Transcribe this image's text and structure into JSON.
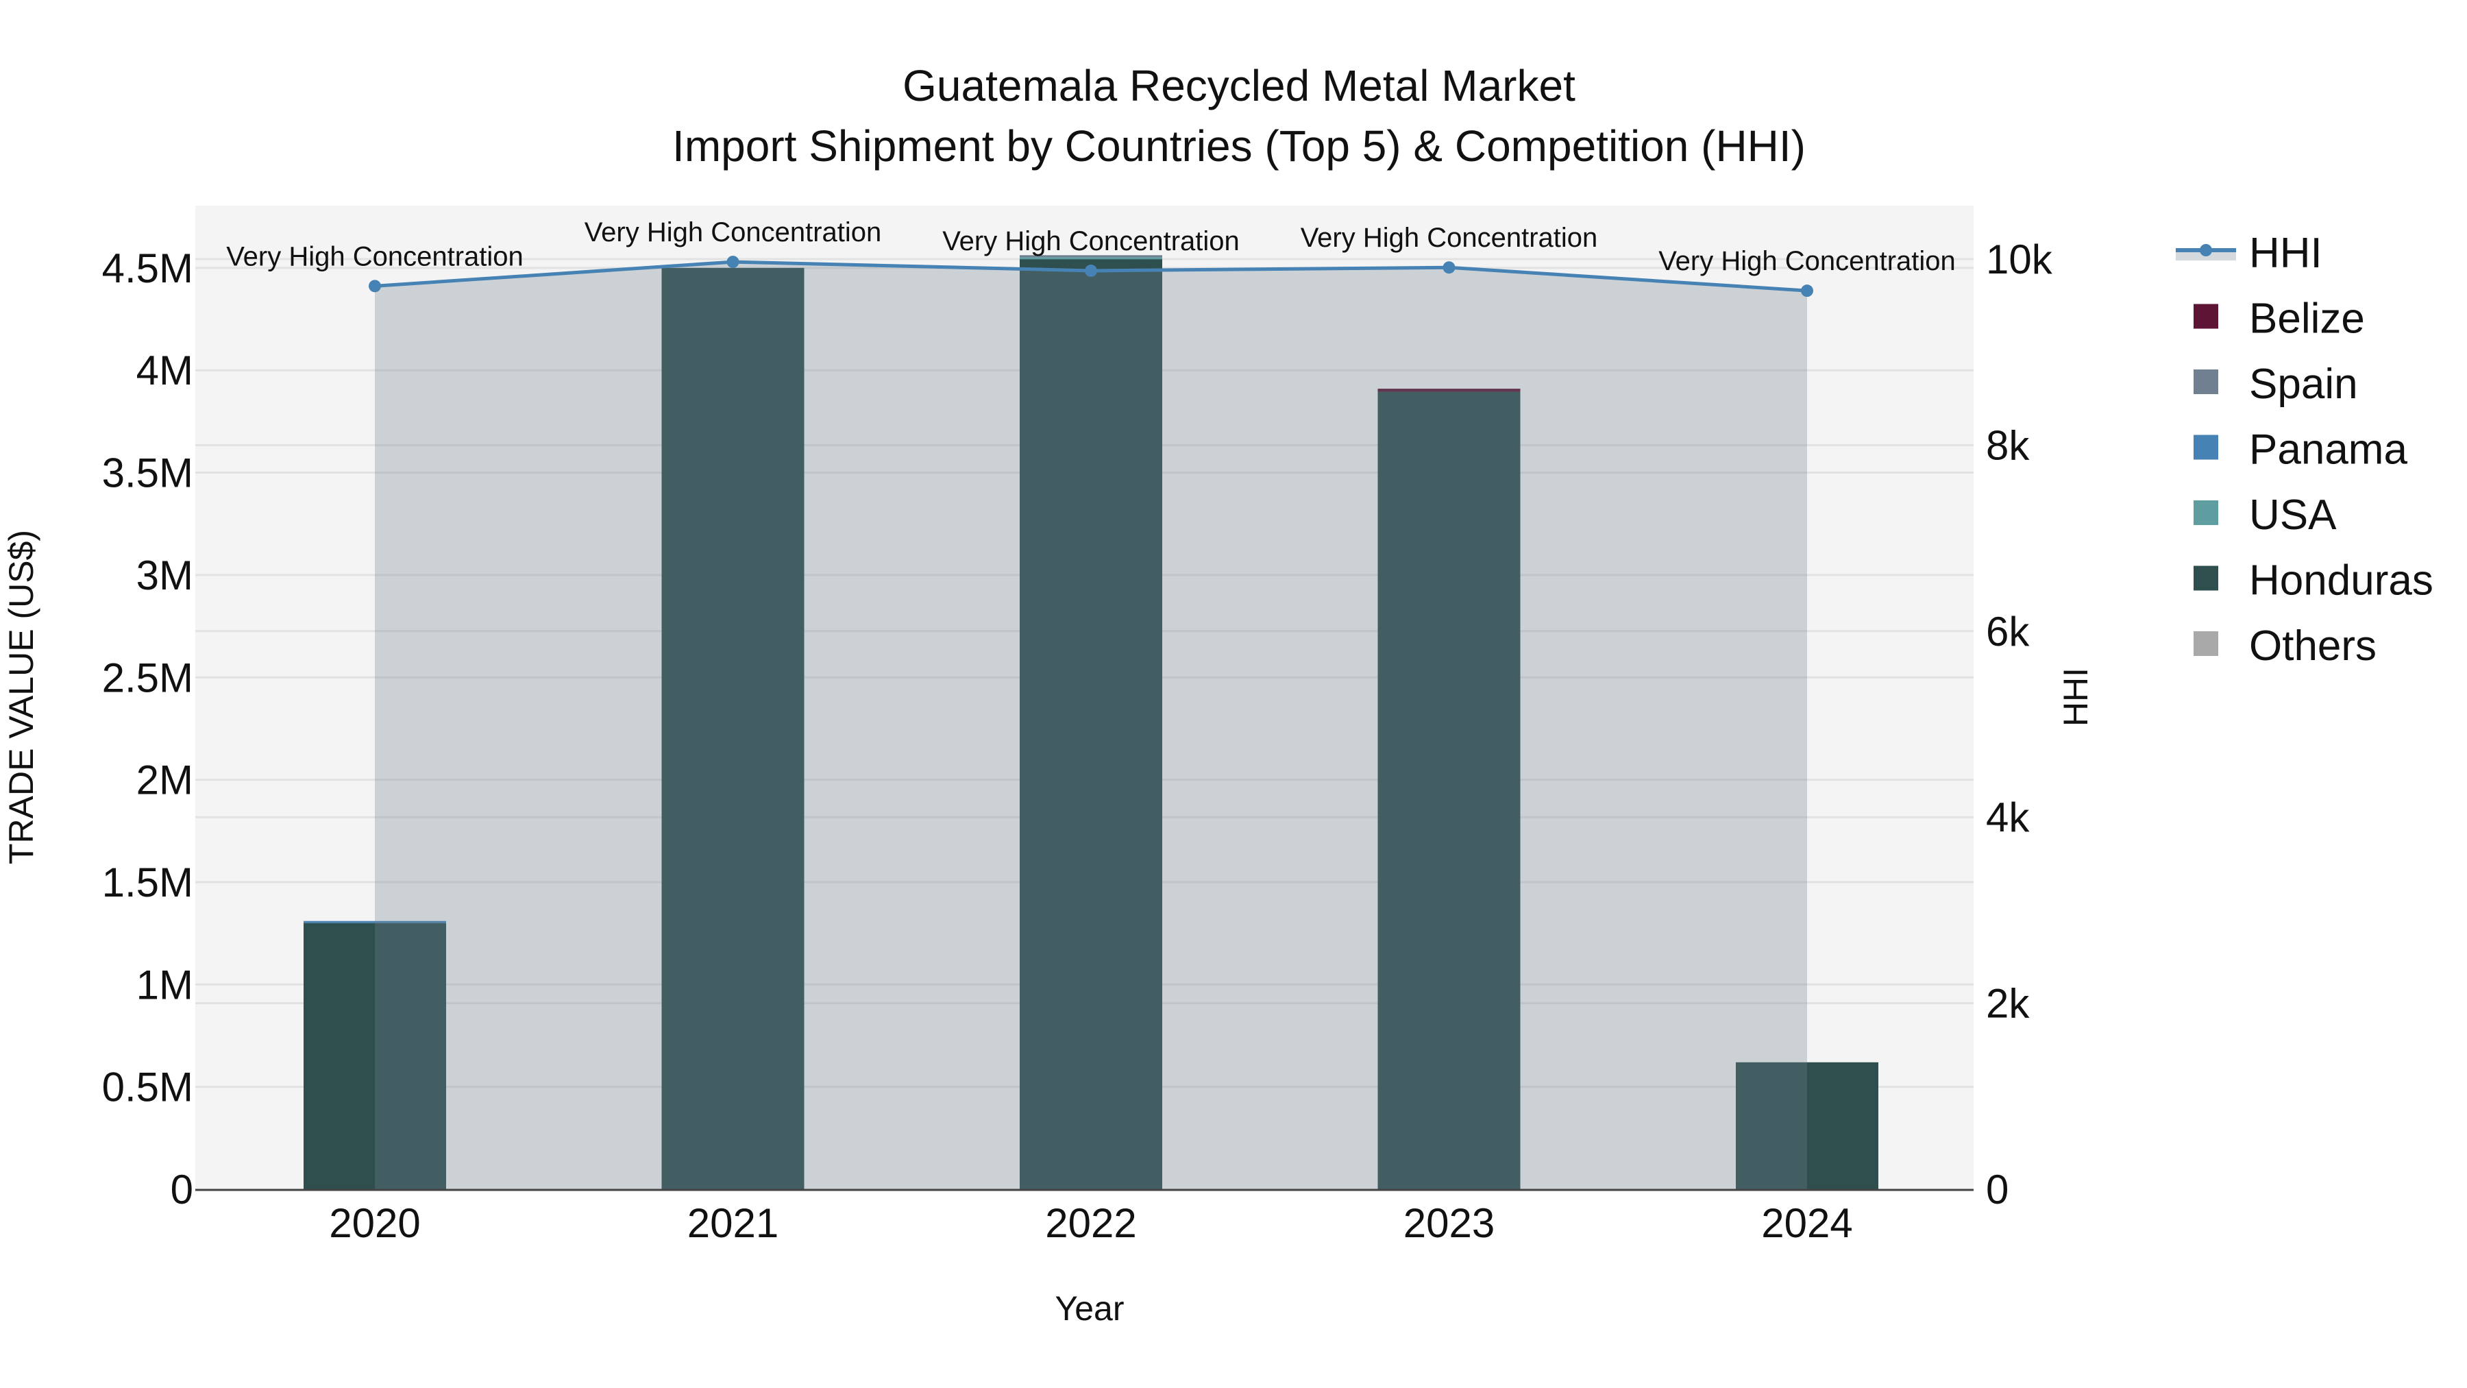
{
  "title": {
    "line1": "Guatemala Recycled Metal Market",
    "line2": "Import Shipment by Countries (Top 5) & Competition (HHI)"
  },
  "axes": {
    "x_title": "Year",
    "y_left_title": "TRADE VALUE (US$)",
    "y_right_title": "HHI",
    "y_left_ticks": [
      "0",
      "0.5M",
      "1M",
      "1.5M",
      "2M",
      "2.5M",
      "3M",
      "3.5M",
      "4M",
      "4.5M"
    ],
    "y_right_ticks": [
      "0",
      "2k",
      "4k",
      "6k",
      "8k",
      "10k"
    ]
  },
  "legend": {
    "items": [
      {
        "label": "HHI",
        "type": "line",
        "color": "#4682B4"
      },
      {
        "label": "Belize",
        "type": "bar",
        "color": "#5E1434"
      },
      {
        "label": "Spain",
        "type": "bar",
        "color": "#708090"
      },
      {
        "label": "Panama",
        "type": "bar",
        "color": "#4682B4"
      },
      {
        "label": "USA",
        "type": "bar",
        "color": "#5F9EA0"
      },
      {
        "label": "Honduras",
        "type": "bar",
        "color": "#2F4F4F"
      },
      {
        "label": "Others",
        "type": "bar",
        "color": "#A9A9A9"
      }
    ]
  },
  "colors": {
    "plot_bg": "#F4F4F4",
    "grid": "#E2E2E2",
    "hhi_line": "#4682B4",
    "hhi_fill": "rgba(112,128,144,0.3)"
  },
  "chart_data": {
    "type": "bar",
    "title": "Guatemala Recycled Metal Market — Import Shipment by Countries (Top 5) & Competition (HHI)",
    "xlabel": "Year",
    "ylabel": "TRADE VALUE (US$)",
    "y2label": "HHI",
    "categories": [
      "2020",
      "2021",
      "2022",
      "2023",
      "2024"
    ],
    "barmode": "stack",
    "ylim": [
      0,
      4.8
    ],
    "y_unit": "M US$",
    "y2lim": [
      0,
      10600
    ],
    "grid": true,
    "legend_position": "right",
    "series": [
      {
        "name": "Honduras",
        "color": "#2F4F4F",
        "values": [
          1.3,
          4.5,
          4.545,
          3.895,
          0.62
        ]
      },
      {
        "name": "USA",
        "color": "#5F9EA0",
        "values": [
          0,
          0,
          0.007,
          0,
          0
        ]
      },
      {
        "name": "Panama",
        "color": "#4682B4",
        "values": [
          0.01,
          0,
          0,
          0,
          0
        ]
      },
      {
        "name": "Spain",
        "color": "#708090",
        "values": [
          0,
          0,
          0.01,
          0,
          0
        ]
      },
      {
        "name": "Belize",
        "color": "#5E1434",
        "values": [
          0,
          0,
          0,
          0.015,
          0
        ]
      },
      {
        "name": "Others",
        "color": "#A9A9A9",
        "values": [
          0,
          0,
          0,
          0,
          0
        ]
      }
    ],
    "line_series": {
      "name": "HHI",
      "axis": "y2",
      "color": "#4682B4",
      "fill": "tozeroy",
      "values": [
        9710,
        9970,
        9875,
        9910,
        9660
      ]
    },
    "annotations": [
      {
        "x": "2020",
        "text": "Very High Concentration"
      },
      {
        "x": "2021",
        "text": "Very High Concentration"
      },
      {
        "x": "2022",
        "text": "Very High Concentration"
      },
      {
        "x": "2023",
        "text": "Very High Concentration"
      },
      {
        "x": "2024",
        "text": "Very High Concentration"
      }
    ]
  }
}
